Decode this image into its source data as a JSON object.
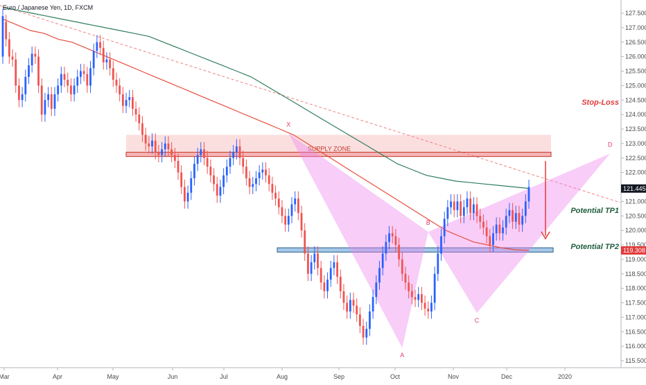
{
  "chart_data": {
    "type": "candlestick",
    "title": "Euro / Japanese Yen, 1D, FXCM",
    "ylim": [
      115.3,
      128.0
    ],
    "y_ticks": [
      115.5,
      116.0,
      116.5,
      117.0,
      117.5,
      118.0,
      118.5,
      119.0,
      119.5,
      120.0,
      120.5,
      121.0,
      121.5,
      122.0,
      122.5,
      123.0,
      123.5,
      124.0,
      124.5,
      125.0,
      125.5,
      126.0,
      126.5,
      127.0,
      127.5
    ],
    "y_tick_labels": [
      "115.500",
      "116.000",
      "116.500",
      "117.000",
      "117.500",
      "118.000",
      "118.500",
      "119.000",
      "119.500",
      "120.000",
      "120.500",
      "121.000",
      "121.500",
      "122.000",
      "122.500",
      "123.000",
      "123.500",
      "124.000",
      "124.500",
      "125.000",
      "125.500",
      "126.000",
      "126.500",
      "127.000",
      "127.500"
    ],
    "x_ticks": [
      "Mar",
      "Apr",
      "May",
      "Jun",
      "Jul",
      "Aug",
      "Sep",
      "Oct",
      "Nov",
      "Dec",
      "2020"
    ],
    "price_labels": {
      "last": {
        "text": "121.445",
        "value": 121.445,
        "color": "#131722"
      },
      "target": {
        "text": "119.308",
        "value": 119.308,
        "color": "#e23b3b"
      }
    },
    "zones": {
      "supply_zone": {
        "label": "SUPPLY ZONE",
        "bottom": 122.55,
        "top": 123.3
      },
      "stop_loss_band": {
        "bottom": 122.55,
        "top": 122.7
      },
      "tp2_band": {
        "bottom": 119.25,
        "top": 119.4
      }
    },
    "pattern_points": [
      {
        "label": "X",
        "x": 88,
        "price": 123.35
      },
      {
        "label": "A",
        "x": 123,
        "price": 115.95
      },
      {
        "label": "B",
        "x": 131,
        "price": 119.95
      },
      {
        "label": "C",
        "x": 146,
        "price": 117.15
      },
      {
        "label": "D",
        "x": 187,
        "price": 122.65
      }
    ],
    "annotations": {
      "stop_loss": "Stop-Loss",
      "tp1": "Potential TP1",
      "tp2": "Potential TP2"
    },
    "ohlc": [
      [
        126.0,
        127.4
      ],
      [
        127.2,
        126.6
      ],
      [
        126.6,
        126.0
      ],
      [
        126.0,
        125.9
      ],
      [
        125.9,
        125.0
      ],
      [
        125.0,
        124.5
      ],
      [
        124.5,
        124.7
      ],
      [
        124.7,
        125.3
      ],
      [
        125.3,
        125.7
      ],
      [
        125.7,
        126.1
      ],
      [
        126.1,
        126.0
      ],
      [
        126.0,
        125.0
      ],
      [
        125.0,
        124.0
      ],
      [
        124.0,
        124.5
      ],
      [
        124.5,
        124.7
      ],
      [
        124.7,
        124.2
      ],
      [
        124.2,
        124.7
      ],
      [
        124.7,
        125.0
      ],
      [
        125.0,
        125.4
      ],
      [
        125.4,
        125.2
      ],
      [
        125.2,
        125.0
      ],
      [
        125.0,
        124.7
      ],
      [
        124.7,
        125.0
      ],
      [
        125.0,
        125.3
      ],
      [
        125.3,
        125.5
      ],
      [
        125.5,
        125.4
      ],
      [
        125.4,
        125.0
      ],
      [
        125.0,
        125.6
      ],
      [
        125.6,
        126.2
      ],
      [
        126.2,
        126.5
      ],
      [
        126.5,
        126.3
      ],
      [
        126.3,
        125.8
      ],
      [
        125.8,
        125.9
      ],
      [
        125.9,
        125.6
      ],
      [
        125.6,
        125.2
      ],
      [
        125.2,
        125.0
      ],
      [
        125.0,
        124.7
      ],
      [
        124.7,
        124.3
      ],
      [
        124.3,
        124.5
      ],
      [
        124.5,
        124.6
      ],
      [
        124.6,
        124.2
      ],
      [
        124.2,
        124.0
      ],
      [
        124.0,
        123.7
      ],
      [
        123.7,
        123.3
      ],
      [
        123.3,
        123.0
      ],
      [
        123.0,
        122.9
      ],
      [
        122.9,
        123.1
      ],
      [
        123.1,
        122.7
      ],
      [
        122.7,
        122.6
      ],
      [
        122.6,
        122.8
      ],
      [
        122.8,
        123.0
      ],
      [
        123.0,
        122.8
      ],
      [
        122.8,
        122.6
      ],
      [
        122.6,
        122.4
      ],
      [
        122.4,
        122.0
      ],
      [
        122.0,
        121.5
      ],
      [
        121.5,
        121.0
      ],
      [
        121.0,
        121.3
      ],
      [
        121.3,
        121.8
      ],
      [
        121.8,
        122.3
      ],
      [
        122.3,
        122.6
      ],
      [
        122.6,
        122.8
      ],
      [
        122.8,
        122.5
      ],
      [
        122.5,
        122.2
      ],
      [
        122.2,
        121.9
      ],
      [
        121.9,
        121.6
      ],
      [
        121.6,
        121.2
      ],
      [
        121.2,
        121.5
      ],
      [
        121.5,
        121.9
      ],
      [
        121.9,
        122.2
      ],
      [
        122.2,
        122.5
      ],
      [
        122.5,
        122.7
      ],
      [
        122.7,
        122.9
      ],
      [
        122.9,
        122.5
      ],
      [
        122.5,
        122.2
      ],
      [
        122.2,
        121.8
      ],
      [
        121.8,
        121.5
      ],
      [
        121.5,
        121.6
      ],
      [
        121.6,
        121.8
      ],
      [
        121.8,
        122.0
      ],
      [
        122.0,
        122.1
      ],
      [
        122.1,
        121.9
      ],
      [
        121.9,
        121.6
      ],
      [
        121.6,
        121.3
      ],
      [
        121.3,
        121.1
      ],
      [
        121.1,
        120.8
      ],
      [
        120.8,
        120.5
      ],
      [
        120.5,
        120.2
      ],
      [
        120.2,
        120.5
      ],
      [
        120.5,
        120.9
      ],
      [
        120.9,
        121.1
      ],
      [
        121.1,
        120.6
      ],
      [
        120.6,
        120.0
      ],
      [
        120.0,
        119.2
      ],
      [
        119.2,
        118.5
      ],
      [
        118.5,
        118.9
      ],
      [
        118.9,
        119.2
      ],
      [
        119.2,
        118.7
      ],
      [
        118.7,
        118.2
      ],
      [
        118.2,
        117.9
      ],
      [
        117.9,
        118.3
      ],
      [
        118.3,
        118.7
      ],
      [
        118.7,
        118.9
      ],
      [
        118.9,
        118.4
      ],
      [
        118.4,
        117.9
      ],
      [
        117.9,
        117.5
      ],
      [
        117.5,
        117.2
      ],
      [
        117.2,
        117.6
      ],
      [
        117.6,
        117.4
      ],
      [
        117.4,
        117.1
      ],
      [
        117.1,
        116.7
      ],
      [
        116.7,
        116.3
      ],
      [
        116.3,
        116.6
      ],
      [
        116.6,
        117.2
      ],
      [
        117.2,
        117.7
      ],
      [
        117.7,
        118.2
      ],
      [
        118.2,
        118.7
      ],
      [
        118.7,
        119.2
      ],
      [
        119.2,
        119.6
      ],
      [
        119.6,
        119.9
      ],
      [
        119.9,
        119.8
      ],
      [
        119.8,
        119.5
      ],
      [
        119.5,
        119.0
      ],
      [
        119.0,
        118.5
      ],
      [
        118.5,
        118.2
      ],
      [
        118.2,
        117.9
      ],
      [
        117.9,
        117.7
      ],
      [
        117.7,
        117.6
      ],
      [
        117.6,
        117.8
      ],
      [
        117.8,
        117.5
      ],
      [
        117.5,
        117.3
      ],
      [
        117.3,
        117.2
      ],
      [
        117.2,
        117.5
      ],
      [
        117.5,
        118.5
      ],
      [
        118.5,
        119.2
      ],
      [
        119.2,
        119.8
      ],
      [
        119.8,
        120.4
      ],
      [
        120.4,
        120.8
      ],
      [
        120.8,
        121.0
      ],
      [
        121.0,
        120.7
      ],
      [
        120.7,
        121.0
      ],
      [
        121.0,
        120.5
      ],
      [
        120.5,
        120.8
      ],
      [
        120.8,
        121.1
      ],
      [
        121.1,
        120.6
      ],
      [
        120.6,
        120.9
      ],
      [
        120.9,
        120.5
      ],
      [
        120.5,
        120.3
      ],
      [
        120.3,
        120.1
      ],
      [
        120.1,
        119.8
      ],
      [
        119.8,
        119.5
      ],
      [
        119.5,
        119.9
      ],
      [
        119.9,
        120.2
      ],
      [
        120.2,
        119.9
      ],
      [
        119.9,
        120.1
      ],
      [
        120.1,
        120.5
      ],
      [
        120.5,
        120.7
      ],
      [
        120.7,
        120.3
      ],
      [
        120.3,
        120.6
      ],
      [
        120.6,
        120.2
      ],
      [
        120.2,
        120.5
      ],
      [
        120.5,
        121.0
      ],
      [
        121.0,
        121.5
      ]
    ],
    "ma_fast": [
      127.3,
      127.1,
      126.9,
      126.8,
      126.6,
      126.5,
      126.3,
      126.1,
      125.9,
      125.7,
      125.5,
      125.3,
      125.1,
      124.9,
      124.7,
      124.5,
      124.3,
      124.1,
      123.9,
      123.7,
      123.5,
      123.3,
      123.0,
      122.7,
      122.4,
      122.1,
      121.8,
      121.5,
      121.2,
      120.9,
      120.6,
      120.3,
      120.0,
      119.8,
      119.6,
      119.5,
      119.4,
      119.33,
      119.31
    ],
    "ma_slow": [
      127.7,
      127.6,
      127.5,
      127.4,
      127.3,
      127.2,
      127.1,
      127.0,
      126.9,
      126.8,
      126.7,
      126.5,
      126.3,
      126.1,
      125.9,
      125.7,
      125.5,
      125.3,
      125.0,
      124.7,
      124.4,
      124.1,
      123.8,
      123.5,
      123.2,
      122.9,
      122.6,
      122.3,
      122.1,
      121.9,
      121.8,
      121.7,
      121.65,
      121.6,
      121.55,
      121.5,
      121.45
    ]
  }
}
